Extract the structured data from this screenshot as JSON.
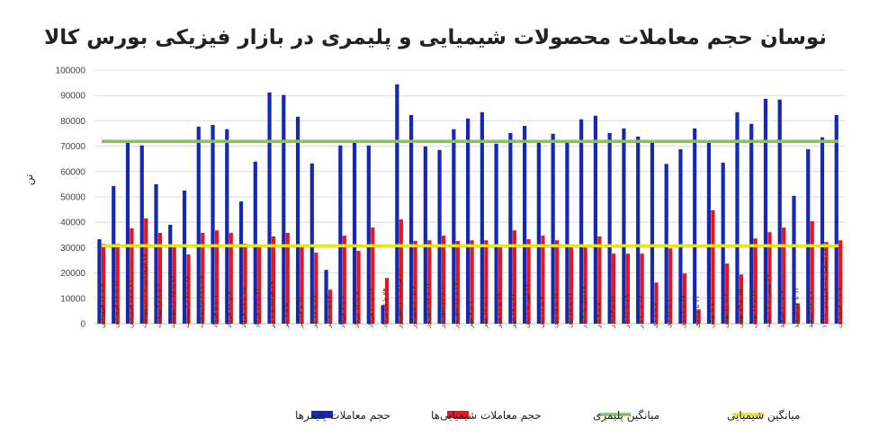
{
  "chart_data": {
    "type": "bar",
    "title": "نوسان حجم معاملات محصولات شیمیایی و پلیمری در بازار فیزیکی بورس کالا",
    "ylabel": "تن",
    "xlabel": "",
    "ylim": [
      0,
      100000
    ],
    "yticks": [
      "0",
      "10000",
      "20000",
      "30000",
      "40000",
      "50000",
      "60000",
      "70000",
      "80000",
      "90000",
      "100000"
    ],
    "grid": true,
    "legend_position": "bottom",
    "categories": [
      "۷ تا ۱۱ فروردین",
      "۱۴ تا ۱۸ فروردین",
      "۲۱ تا ۲۵ فروردین",
      "۲۸ فروردین تا ۱ اردیبهشت",
      "۴ تا ۸ اردیبهشت",
      "۱۱ تا ۱۵ اردیبهشت",
      "۱۸ تا ۲۲ اردیبهشت",
      "۲۵ تا ۲۹ اردیبهشت",
      "۱ تا ۵ خرداد",
      "۸ تا ۱۲ خرداد",
      "۱۵ تا ۱۹ خرداد",
      "۲۲ تا ۲۶ خرداد",
      "۲۹ خرداد تا ۲ تیر",
      "۵ تا ۹ تیر",
      "۱۲ تا ۱۶ تیر",
      "۱۹ تا ۲۳ تیر",
      "۲۶ تا ۳۰ تیر",
      "۲ تا ۶ مرداد",
      "۹ تا ۱۳ مرداد",
      "۱۶ تا ۲۰ مرداد",
      "۲۳ تا ۲۷ مرداد",
      "۳۰ مرداد تا ۳ شهریور",
      "۶ تا ۱۰ شهریور",
      "۱۳ تا ۱۷ شهریور",
      "۲۰ تا ۲۴ شهریور",
      "۲۷ تا ۳۱ شهریور",
      "۳ تا ۷ مهر",
      "۱۰ تا ۱۴ مهر",
      "۱۷ تا ۲۱ مهر",
      "۲۴ تا ۲۸ مهر",
      "۳۱ مهر تا ۴ آبان",
      "۷ تا ۱۱ آبان",
      "۱۴ تا ۱۸ آبان",
      "۲۱ تا ۲۵ آبان",
      "۲۸ آبان تا ۲ آذر",
      "۵ تا ۹ آذر",
      "۱۲ تا ۱۶ آذر",
      "۱۹ تا ۲۳ آذر",
      "۲۶ تا ۳۰ آذر",
      "۳ تا ۷ دی",
      "۱۰ تا ۱۴ دی",
      "۱۷ تا ۲۱ دی",
      "۲۴ تا ۲۸ دی",
      "۱ تا ۵ بهمن",
      "۸ تا ۱۲ بهمن",
      "۱۵ تا ۱۹ بهمن",
      "۲۲ تا ۲۶ بهمن",
      "۲۹ بهمن تا ۳ اسفند",
      "۶ تا ۱۰ اسفند",
      "۱۳ تا ۱۷ اسفند",
      "۲۰ تا ۲۴ اسفند",
      "۲۷ اسفند تا ۲ فروردین ۱۴۰۱",
      "۵ تا ۹ فروردین"
    ],
    "series": [
      {
        "name": "حجم معاملات پلیمرها",
        "kind": "bar",
        "color": "#1428b4",
        "values": [
          33300,
          54300,
          71300,
          70300,
          55000,
          39000,
          52500,
          77700,
          78400,
          76700,
          48200,
          63900,
          91200,
          90200,
          81600,
          63200,
          21200,
          70300,
          71300,
          70300,
          7300,
          94400,
          82300,
          69900,
          68500,
          76700,
          80900,
          83400,
          71000,
          75200,
          78000,
          71300,
          74900,
          71300,
          80600,
          82000,
          75200,
          77000,
          73800,
          71300,
          63000,
          68800,
          77000,
          71300,
          63500,
          83400,
          78800,
          88700,
          88400,
          50400,
          68800,
          73500,
          82300
        ]
      },
      {
        "name": "حجم معاملات شیمیایی‌ها",
        "kind": "bar",
        "color": "#e8141e",
        "values": [
          31500,
          31500,
          37600,
          41500,
          35800,
          30100,
          27300,
          35800,
          36800,
          35800,
          31500,
          30100,
          34400,
          35800,
          30100,
          28000,
          13400,
          34700,
          28700,
          37900,
          18000,
          41100,
          32600,
          32900,
          34700,
          32600,
          32900,
          32900,
          30100,
          36800,
          33300,
          34700,
          32900,
          30100,
          30000,
          34400,
          27600,
          27600,
          27600,
          16200,
          29700,
          19800,
          5600,
          44700,
          23700,
          19400,
          33600,
          36100,
          37900,
          8000,
          40400,
          32200,
          32900
        ]
      },
      {
        "name": "میانگین پلیمری",
        "kind": "line",
        "color": "#8fbc6a",
        "value": 71900
      },
      {
        "name": "میانگین شیمیایی",
        "kind": "line",
        "color": "#e6e620",
        "value": 30700
      }
    ]
  }
}
